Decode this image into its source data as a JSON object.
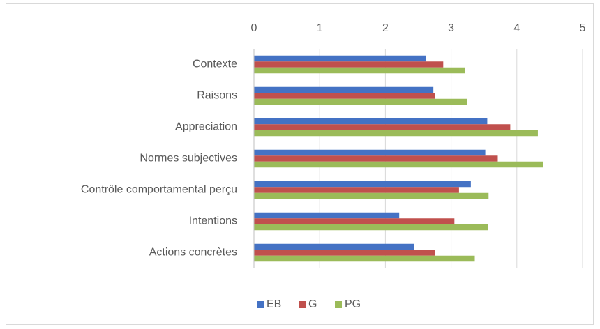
{
  "chart_data": {
    "type": "hbar",
    "categories": [
      "Contexte",
      "Raisons",
      "Appreciation",
      "Normes subjectives",
      "Contrôle comportamental perçu",
      "Intentions",
      "Actions concrètes"
    ],
    "series": [
      {
        "name": "EB",
        "color": "#4472c4",
        "values": [
          2.62,
          2.73,
          3.55,
          3.52,
          3.3,
          2.21,
          2.44
        ]
      },
      {
        "name": "G",
        "color": "#c0504d",
        "values": [
          2.88,
          2.76,
          3.9,
          3.71,
          3.12,
          3.05,
          2.76
        ]
      },
      {
        "name": "PG",
        "color": "#9bbb59",
        "values": [
          3.21,
          3.24,
          4.32,
          4.4,
          3.57,
          3.56,
          3.36
        ]
      }
    ],
    "xlim": [
      0,
      5
    ],
    "xticks": [
      0,
      1,
      2,
      3,
      4,
      5
    ],
    "grid": true,
    "legend": "bottom"
  }
}
